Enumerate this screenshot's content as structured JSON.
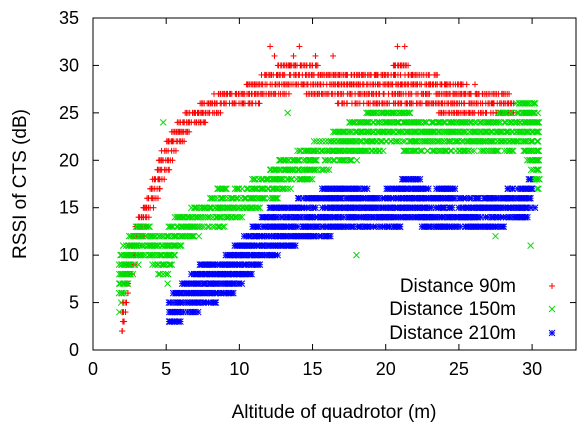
{
  "chart_data": {
    "type": "scatter",
    "title": "",
    "xlabel": "Altitude of quadrotor (m)",
    "ylabel": "RSSI of CTS (dB)",
    "xlim": [
      0,
      33
    ],
    "ylim": [
      0,
      35
    ],
    "xticks": [
      "0",
      "5",
      "10",
      "15",
      "20",
      "25",
      "30"
    ],
    "yticks": [
      "0",
      "5",
      "10",
      "15",
      "20",
      "25",
      "30",
      "35"
    ],
    "grid": false,
    "legend_position": "bottom-right",
    "series": [
      {
        "name": "Distance 90m",
        "marker": "plus",
        "color": "#ff0000",
        "x": [
          2,
          2.1,
          2.2,
          2.3,
          2.4,
          2.5,
          2.7,
          2.8,
          3,
          3.2,
          3.3,
          3.5,
          3.6,
          3.8,
          4,
          4.2,
          4.4,
          4.5,
          4.7,
          4.9,
          5,
          5.2,
          5.4,
          5.6,
          5.8,
          6,
          6.2,
          6.4,
          6.6,
          6.8,
          7,
          7.2,
          7.4,
          7.6,
          7.8,
          8,
          8.3,
          8.6,
          9,
          9.4,
          9.8,
          10.2,
          10.6,
          11,
          11.4,
          11.8,
          12.2,
          12.6,
          13,
          13.4,
          13.8,
          14.2,
          14.6,
          15,
          15.4,
          15.8,
          16.2,
          16.6,
          17,
          17.4,
          17.8,
          18.2,
          18.6,
          19,
          19.4,
          19.8,
          20.2,
          20.6,
          21,
          21.4,
          21.8,
          22.2,
          22.6,
          23,
          23.4,
          23.8,
          24.2,
          24.6,
          25,
          25.4,
          25.8,
          26.2,
          26.6,
          27,
          27.4,
          27.8,
          28.2,
          28.6,
          12.1,
          12.4,
          13.7,
          14.1,
          15.2,
          16.4,
          20.8,
          21.3,
          26.1,
          22.7
        ],
        "y": [
          2,
          3,
          5,
          7,
          9,
          10,
          11,
          12,
          12,
          13,
          14,
          15,
          15,
          16,
          17,
          18,
          19,
          20,
          20,
          21,
          21,
          22,
          22,
          23,
          23,
          23,
          24,
          24,
          24,
          25,
          25,
          25,
          25,
          26,
          26,
          26,
          26,
          27,
          27,
          27,
          27,
          27,
          28,
          28,
          28,
          29,
          29,
          29,
          29,
          30,
          30,
          30,
          30,
          30,
          29,
          29,
          29,
          29,
          28,
          28,
          28,
          29,
          29,
          29,
          29,
          29,
          28,
          29,
          30,
          30,
          29,
          29,
          29,
          28,
          28,
          28,
          28,
          27,
          27,
          27,
          27,
          27,
          27,
          26,
          26,
          26,
          26,
          26,
          32,
          31,
          31,
          32,
          31,
          31,
          32,
          32,
          28,
          13
        ],
        "band": [
          [
            2.0,
            2,
            5
          ],
          [
            2.4,
            6,
            10
          ],
          [
            2.8,
            9,
            12
          ],
          [
            3.2,
            11,
            14
          ],
          [
            3.6,
            13,
            15
          ],
          [
            4.0,
            15,
            17
          ],
          [
            4.4,
            16,
            19
          ],
          [
            4.8,
            18,
            21
          ],
          [
            5.2,
            19,
            22
          ],
          [
            5.6,
            21,
            23
          ],
          [
            6.0,
            22,
            24
          ],
          [
            6.5,
            23,
            25
          ],
          [
            7.0,
            24,
            25
          ],
          [
            7.5,
            24,
            26
          ],
          [
            8.0,
            25,
            26
          ],
          [
            8.5,
            25,
            27
          ],
          [
            9.0,
            26,
            27
          ],
          [
            10.0,
            26,
            27
          ],
          [
            11.0,
            26,
            28
          ],
          [
            12.0,
            27,
            29
          ],
          [
            13.0,
            27,
            30
          ],
          [
            14.0,
            28,
            30
          ],
          [
            15.0,
            27,
            30
          ],
          [
            16.0,
            27,
            29
          ],
          [
            17.0,
            26,
            29
          ],
          [
            18.0,
            26,
            29
          ],
          [
            19.0,
            26,
            29
          ],
          [
            20.0,
            26,
            29
          ],
          [
            21.0,
            26,
            30
          ],
          [
            22.0,
            26,
            29
          ],
          [
            23.0,
            26,
            29
          ],
          [
            24.0,
            25,
            28
          ],
          [
            25.0,
            25,
            28
          ],
          [
            26.0,
            25,
            27
          ],
          [
            27.0,
            25,
            27
          ],
          [
            28.0,
            25,
            27
          ],
          [
            28.8,
            25,
            26
          ]
        ]
      },
      {
        "name": "Distance 150m",
        "marker": "cross",
        "color": "#00dd00",
        "x": [
          1.8,
          2,
          2.2,
          2.4,
          2.6,
          2.8,
          3,
          3.3,
          3.6,
          4,
          4.4,
          4.8,
          5.2,
          5.6,
          6,
          6.4,
          6.8,
          7.2,
          7.6,
          8,
          8.4,
          8.8,
          9.2,
          9.6,
          10,
          10.4,
          10.8,
          11.2,
          11.6,
          12,
          12.4,
          12.8,
          13.2,
          13.6,
          14,
          14.4,
          14.8,
          15.2,
          15.6,
          16,
          16.4,
          16.8,
          17.2,
          17.6,
          18,
          18.4,
          18.8,
          19.2,
          19.6,
          20,
          20.4,
          20.8,
          21.2,
          21.6,
          22,
          22.4,
          22.8,
          23.2,
          23.6,
          24,
          24.4,
          24.8,
          25.2,
          25.6,
          26,
          26.4,
          26.8,
          27.2,
          27.6,
          28,
          28.4,
          28.8,
          29.2,
          29.6,
          30,
          30.3,
          30.5,
          5.1,
          18,
          27.5,
          29.9,
          4.8,
          13.3
        ],
        "y": [
          4,
          6,
          8,
          9,
          10,
          11,
          11,
          12,
          12,
          11,
          10,
          9,
          10,
          12,
          13,
          13,
          14,
          14,
          15,
          15,
          14,
          15,
          15,
          16,
          15,
          16,
          16,
          17,
          17,
          17,
          18,
          18,
          19,
          19,
          19,
          20,
          20,
          20,
          21,
          21,
          21,
          22,
          22,
          22,
          22,
          23,
          23,
          23,
          23,
          24,
          24,
          24,
          24,
          22,
          22,
          23,
          23,
          23,
          23,
          22,
          22,
          22,
          22,
          22,
          22,
          22,
          22,
          22,
          23,
          23,
          23,
          24,
          24,
          25,
          23,
          21,
          18,
          7,
          10,
          12,
          11,
          24,
          25
        ],
        "band": [
          [
            1.8,
            4,
            9
          ],
          [
            2.2,
            6,
            11
          ],
          [
            2.6,
            8,
            12
          ],
          [
            3.0,
            9,
            13
          ],
          [
            3.4,
            10,
            13
          ],
          [
            3.8,
            10,
            13
          ],
          [
            4.2,
            9,
            12
          ],
          [
            4.6,
            8,
            12
          ],
          [
            5.0,
            8,
            12
          ],
          [
            5.4,
            9,
            13
          ],
          [
            5.8,
            11,
            14
          ],
          [
            6.4,
            12,
            14
          ],
          [
            7.0,
            12,
            15
          ],
          [
            7.6,
            13,
            15
          ],
          [
            8.2,
            13,
            16
          ],
          [
            8.8,
            13,
            17
          ],
          [
            9.4,
            14,
            16
          ],
          [
            10.0,
            14,
            17
          ],
          [
            10.6,
            15,
            17
          ],
          [
            11.2,
            15,
            18
          ],
          [
            11.8,
            16,
            18
          ],
          [
            12.4,
            16,
            19
          ],
          [
            13.0,
            17,
            20
          ],
          [
            13.6,
            17,
            20
          ],
          [
            14.2,
            18,
            21
          ],
          [
            14.8,
            18,
            21
          ],
          [
            15.4,
            19,
            22
          ],
          [
            16.0,
            19,
            22
          ],
          [
            16.6,
            20,
            23
          ],
          [
            17.2,
            20,
            23
          ],
          [
            17.8,
            20,
            24
          ],
          [
            18.4,
            21,
            24
          ],
          [
            19.0,
            21,
            25
          ],
          [
            19.6,
            21,
            25
          ],
          [
            20.2,
            22,
            25
          ],
          [
            20.8,
            22,
            25
          ],
          [
            21.4,
            21,
            25
          ],
          [
            22.0,
            21,
            24
          ],
          [
            22.6,
            21,
            24
          ],
          [
            23.2,
            21,
            24
          ],
          [
            23.8,
            21,
            24
          ],
          [
            24.4,
            21,
            24
          ],
          [
            25.0,
            21,
            24
          ],
          [
            25.6,
            21,
            24
          ],
          [
            26.2,
            21,
            24
          ],
          [
            26.8,
            21,
            24
          ],
          [
            27.4,
            21,
            24
          ],
          [
            28.0,
            21,
            25
          ],
          [
            28.6,
            21,
            25
          ],
          [
            29.2,
            22,
            26
          ],
          [
            29.8,
            20,
            26
          ],
          [
            30.3,
            17,
            26
          ],
          [
            30.5,
            17,
            23
          ]
        ]
      },
      {
        "name": "Distance 210m",
        "marker": "star",
        "color": "#0000ff",
        "x": [
          5.2,
          5.6,
          6,
          6.4,
          6.8,
          7.2,
          7.6,
          8,
          8.4,
          8.8,
          9.2,
          9.6,
          10,
          10.4,
          10.8,
          11.2,
          11.6,
          12,
          12.4,
          12.8,
          13.2,
          13.6,
          14,
          14.4,
          14.8,
          15.2,
          15.6,
          16,
          16.4,
          16.8,
          17.2,
          17.6,
          18,
          18.4,
          18.8,
          19.2,
          19.6,
          20,
          20.4,
          20.8,
          21.2,
          21.6,
          22,
          22.4,
          22.8,
          23.2,
          23.6,
          24,
          24.4,
          24.8,
          25.2,
          25.6,
          26,
          26.4,
          26.8,
          29.5,
          29.8,
          30,
          30.2
        ],
        "y": [
          3,
          4,
          5,
          5,
          6,
          6,
          7,
          7,
          7,
          8,
          8,
          8,
          9,
          9,
          10,
          11,
          11,
          12,
          12,
          12,
          13,
          13,
          13,
          13,
          14,
          14,
          14,
          14,
          14,
          15,
          15,
          15,
          15,
          15,
          14,
          14,
          14,
          15,
          15,
          15,
          16,
          16,
          16,
          14,
          14,
          14,
          15,
          15,
          15,
          14,
          14,
          14,
          14,
          15,
          15,
          14,
          16,
          17,
          15
        ],
        "band": [
          [
            5.2,
            3,
            5
          ],
          [
            5.8,
            3,
            6
          ],
          [
            6.4,
            4,
            7
          ],
          [
            7.0,
            4,
            8
          ],
          [
            7.6,
            5,
            9
          ],
          [
            8.2,
            5,
            9
          ],
          [
            8.8,
            6,
            9
          ],
          [
            9.4,
            6,
            10
          ],
          [
            10.0,
            7,
            11
          ],
          [
            10.6,
            8,
            12
          ],
          [
            11.2,
            9,
            13
          ],
          [
            11.8,
            10,
            14
          ],
          [
            12.4,
            10,
            15
          ],
          [
            13.0,
            11,
            15
          ],
          [
            13.6,
            11,
            15
          ],
          [
            14.2,
            12,
            16
          ],
          [
            14.8,
            12,
            16
          ],
          [
            15.4,
            12,
            16
          ],
          [
            16.0,
            12,
            17
          ],
          [
            16.6,
            13,
            17
          ],
          [
            17.2,
            13,
            17
          ],
          [
            17.8,
            13,
            17
          ],
          [
            18.4,
            13,
            17
          ],
          [
            19.0,
            13,
            16
          ],
          [
            19.6,
            13,
            16
          ],
          [
            20.2,
            13,
            17
          ],
          [
            20.8,
            13,
            17
          ],
          [
            21.4,
            14,
            18
          ],
          [
            22.0,
            14,
            18
          ],
          [
            22.6,
            13,
            17
          ],
          [
            23.2,
            13,
            16
          ],
          [
            23.8,
            13,
            17
          ],
          [
            24.4,
            13,
            17
          ],
          [
            25.0,
            13,
            16
          ],
          [
            25.6,
            13,
            16
          ],
          [
            26.2,
            13,
            16
          ],
          [
            26.8,
            13,
            16
          ],
          [
            29.6,
            14,
            17
          ],
          [
            30.0,
            15,
            18
          ]
        ]
      }
    ]
  }
}
